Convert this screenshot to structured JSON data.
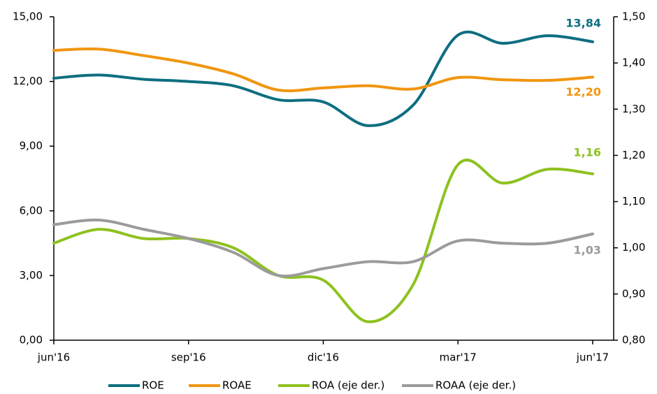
{
  "chart_data": {
    "type": "line",
    "categories": [
      "jun'16",
      null,
      null,
      "sep'16",
      null,
      null,
      "dic'16",
      null,
      null,
      "mar'17",
      null,
      null,
      "jun'17"
    ],
    "series": [
      {
        "name": "ROE",
        "color": "#0e6e80",
        "values": [
          12.15,
          12.3,
          12.1,
          12.0,
          11.8,
          11.15,
          11.05,
          9.95,
          10.9,
          14.15,
          13.77,
          14.12,
          13.84
        ],
        "value_labels": [
          null,
          null,
          null,
          null,
          null,
          null,
          null,
          null,
          null,
          null,
          null,
          null,
          "13,84"
        ]
      },
      {
        "name": "ROAE",
        "color": "#f0960f",
        "values": [
          13.44,
          13.5,
          13.2,
          12.85,
          12.35,
          11.6,
          11.7,
          11.8,
          11.65,
          12.18,
          12.08,
          12.05,
          12.2
        ],
        "value_labels": [
          null,
          null,
          null,
          null,
          null,
          null,
          null,
          null,
          null,
          null,
          null,
          null,
          "12,20"
        ]
      },
      {
        "name": "ROA (eje der.)",
        "color": "#8dc21f",
        "axis": "y2",
        "values": [
          1.01,
          1.04,
          1.02,
          1.02,
          1.0,
          0.94,
          0.93,
          0.84,
          0.92,
          1.18,
          1.14,
          1.17,
          1.16
        ],
        "value_labels": [
          null,
          null,
          null,
          null,
          null,
          null,
          null,
          null,
          null,
          null,
          null,
          null,
          "1,16"
        ]
      },
      {
        "name": "ROAA (eje der.)",
        "color": "#9b9b9b",
        "axis": "y2",
        "values": [
          1.05,
          1.06,
          1.04,
          1.02,
          0.99,
          0.94,
          0.955,
          0.97,
          0.97,
          1.015,
          1.01,
          1.01,
          1.03
        ],
        "value_labels": [
          null,
          null,
          null,
          null,
          null,
          null,
          null,
          null,
          null,
          null,
          null,
          null,
          "1,03"
        ]
      }
    ],
    "ylim": [
      0,
      15
    ],
    "yticks": [
      {
        "value": 0,
        "label": "0,00"
      },
      {
        "value": 3,
        "label": "3,00"
      },
      {
        "value": 6,
        "label": "6,00"
      },
      {
        "value": 9,
        "label": "9,00"
      },
      {
        "value": 12,
        "label": "12,00"
      },
      {
        "value": 15,
        "label": "15,00"
      }
    ],
    "y2lim": [
      0.8,
      1.5
    ],
    "y2ticks": [
      {
        "value": 0.8,
        "label": "0,80"
      },
      {
        "value": 0.9,
        "label": "0,90"
      },
      {
        "value": 1.0,
        "label": "1,00"
      },
      {
        "value": 1.1,
        "label": "1,10"
      },
      {
        "value": 1.2,
        "label": "1,20"
      },
      {
        "value": 1.3,
        "label": "1,30"
      },
      {
        "value": 1.4,
        "label": "1,40"
      },
      {
        "value": 1.5,
        "label": "1,50"
      }
    ],
    "grid": false,
    "legend": "bottom"
  }
}
